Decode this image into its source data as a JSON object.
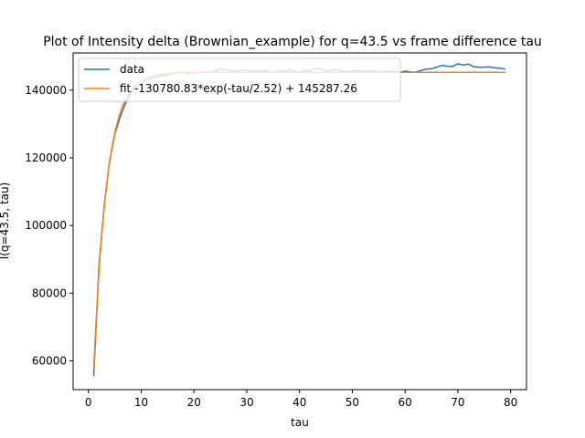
{
  "chart_data": {
    "type": "line",
    "title": "Plot of Intensity delta (Brownian_example) for q=43.5 vs frame difference tau",
    "xlabel": "tau",
    "ylabel": "I(q=43.5, tau)",
    "xlim": [
      -2.9,
      83.0
    ],
    "ylim": [
      51500,
      151000
    ],
    "xticks": [
      0,
      10,
      20,
      30,
      40,
      50,
      60,
      70,
      80
    ],
    "yticks": [
      60000,
      80000,
      100000,
      120000,
      140000
    ],
    "ytick_labels": [
      "60000",
      "80000",
      "100000",
      "120000",
      "140000"
    ],
    "grid": false,
    "legend_location": "upper left",
    "series": [
      {
        "name": "data",
        "color": "#1f77b4",
        "x": [
          1,
          2,
          3,
          4,
          5,
          6,
          7,
          8,
          9,
          10,
          11,
          12,
          13,
          14,
          15,
          16,
          17,
          18,
          19,
          20,
          21,
          22,
          23,
          24,
          25,
          26,
          27,
          28,
          29,
          30,
          31,
          32,
          33,
          34,
          35,
          36,
          37,
          38,
          39,
          40,
          41,
          42,
          43,
          44,
          45,
          46,
          47,
          48,
          49,
          50,
          51,
          52,
          53,
          54,
          55,
          56,
          57,
          58,
          59,
          60,
          61,
          62,
          63,
          64,
          65,
          66,
          67,
          68,
          69,
          70,
          71,
          72,
          73,
          74,
          75,
          76,
          77,
          78,
          79
        ],
        "y": [
          55500,
          88000,
          106000,
          119000,
          127000,
          132000,
          136000,
          139000,
          141000,
          142000,
          143000,
          143500,
          144000,
          144300,
          144500,
          145000,
          145200,
          145300,
          145000,
          145100,
          145300,
          145500,
          145200,
          145700,
          146200,
          146000,
          145800,
          145600,
          145900,
          146000,
          145700,
          145500,
          145900,
          145600,
          145300,
          145700,
          145500,
          145900,
          145600,
          145400,
          145800,
          145700,
          146300,
          146400,
          145700,
          145800,
          146000,
          145600,
          145500,
          145700,
          145700,
          145600,
          145500,
          145700,
          145400,
          145500,
          145700,
          145500,
          145300,
          145600,
          145400,
          145300,
          145800,
          146200,
          146300,
          146800,
          147300,
          147100,
          147000,
          147800,
          147400,
          147700,
          146900,
          146800,
          146800,
          146900,
          146600,
          146500,
          146200
        ]
      },
      {
        "name": "fit -130780.83*exp(-tau/2.52) + 145287.26",
        "color": "#ff7f0e",
        "amplitude": -130780.83,
        "tau_c": 2.52,
        "offset": 145287.26,
        "x_range": [
          1,
          79
        ]
      }
    ]
  }
}
